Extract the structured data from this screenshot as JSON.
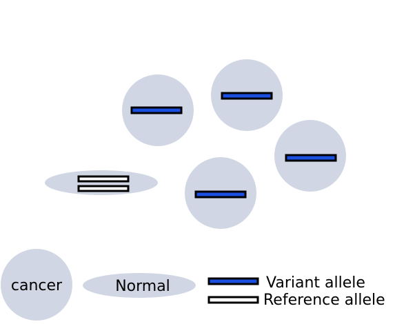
{
  "colors": {
    "cell_fill": "#d0d6e3",
    "variant_fill": "#1a4fe0",
    "reference_fill": "#ffffff",
    "outline": "#000000"
  },
  "cells": [
    {
      "kind": "cancer",
      "allele": "variant"
    },
    {
      "kind": "cancer",
      "allele": "variant"
    },
    {
      "kind": "cancer",
      "allele": "variant"
    },
    {
      "kind": "cancer",
      "allele": "variant"
    },
    {
      "kind": "normal",
      "allele": "reference"
    }
  ],
  "legend": {
    "cancer_label": "cancer",
    "normal_label": "Normal",
    "variant_label": "Variant allele",
    "reference_label": "Reference allele"
  }
}
